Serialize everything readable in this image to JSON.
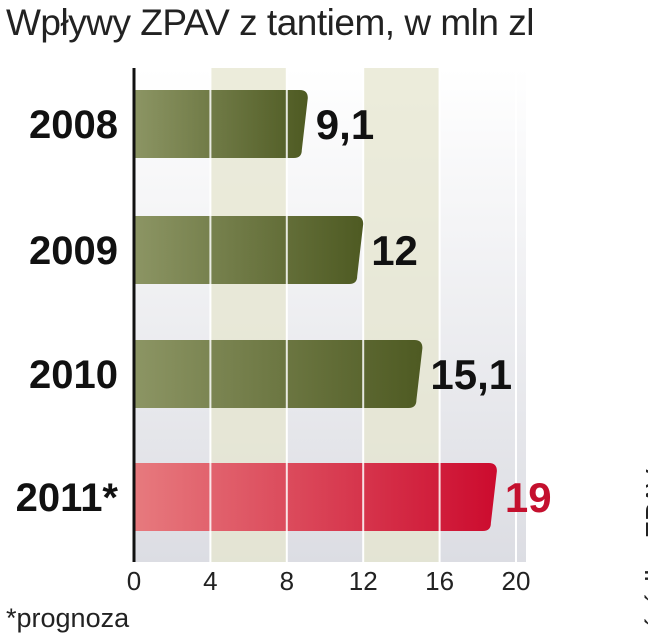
{
  "title": "Wpływy ZPAV z tantiem, w mln zl",
  "footnote": "*prognoza",
  "source": "źródło: ZPAV",
  "colors": {
    "bar_start": "#8c9564",
    "bar_end": "#4e5a22",
    "highlight_start": "#e77a7e",
    "highlight_end": "#cc0b2e",
    "value_text": "#111111",
    "highlight_value_text": "#c4102e",
    "plot_bg_top": "#ffffff",
    "plot_bg_bottom": "#dcdde3",
    "band": "#e6e6cf"
  },
  "chart_data": {
    "type": "bar",
    "orientation": "horizontal",
    "title": "Wpływy ZPAV z tantiem, w mln zl",
    "categories": [
      "2008",
      "2009",
      "2010",
      "2011*"
    ],
    "values": [
      9.1,
      12,
      15.1,
      19
    ],
    "value_labels": [
      "9,1",
      "12",
      "15,1",
      "19"
    ],
    "highlight": [
      false,
      false,
      false,
      true
    ],
    "xlim": [
      0,
      20
    ],
    "xticks": [
      0,
      4,
      8,
      12,
      16,
      20
    ],
    "grid": true,
    "legend": "none"
  }
}
